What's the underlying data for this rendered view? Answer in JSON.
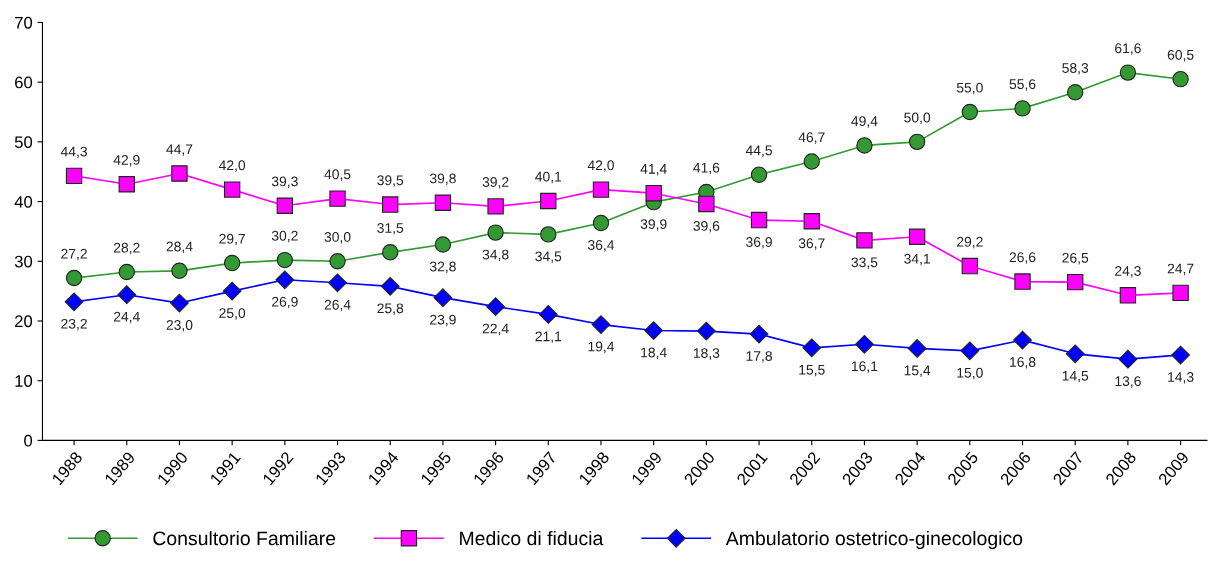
{
  "chart_data": {
    "type": "line",
    "categories": [
      "1988",
      "1989",
      "1990",
      "1991",
      "1992",
      "1993",
      "1994",
      "1995",
      "1996",
      "1997",
      "1998",
      "1999",
      "2000",
      "2001",
      "2002",
      "2003",
      "2004",
      "2005",
      "2006",
      "2007",
      "2008",
      "2009"
    ],
    "series": [
      {
        "name": "Consultorio Familiare",
        "color": "#339933",
        "marker": "circle",
        "values": [
          27.2,
          28.2,
          28.4,
          29.7,
          30.2,
          30.0,
          31.5,
          32.8,
          34.8,
          34.5,
          36.4,
          39.9,
          41.6,
          44.5,
          46.7,
          49.4,
          50.0,
          55.0,
          55.6,
          58.3,
          61.6,
          60.5
        ],
        "value_labels": [
          "27,2",
          "28,2",
          "28,4",
          "29,7",
          "30,2",
          "30,0",
          "31,5",
          "32,8",
          "34,8",
          "34,5",
          "36,4",
          "39,9",
          "41,6",
          "44,5",
          "46,7",
          "49,4",
          "50,0",
          "55,0",
          "55,6",
          "58,3",
          "61,6",
          "60,5"
        ]
      },
      {
        "name": "Medico di fiducia",
        "color": "#ff00ff",
        "marker": "square",
        "values": [
          44.3,
          42.9,
          44.7,
          42.0,
          39.3,
          40.5,
          39.5,
          39.8,
          39.2,
          40.1,
          42.0,
          41.4,
          39.6,
          36.9,
          36.7,
          33.5,
          34.1,
          29.2,
          26.6,
          26.5,
          24.3,
          24.7
        ],
        "value_labels": [
          "44,3",
          "42,9",
          "44,7",
          "42,0",
          "39,3",
          "40,5",
          "39,5",
          "39,8",
          "39,2",
          "40,1",
          "42,0",
          "41,4",
          "39,6",
          "36,9",
          "36,7",
          "33,5",
          "34,1",
          "29,2",
          "26,6",
          "26,5",
          "24,3",
          "24,7"
        ]
      },
      {
        "name": "Ambulatorio ostetrico-ginecologico",
        "color": "#0000ff",
        "marker": "diamond",
        "values": [
          23.2,
          24.4,
          23.0,
          25.0,
          26.9,
          26.4,
          25.8,
          23.9,
          22.4,
          21.1,
          19.4,
          18.4,
          18.3,
          17.8,
          15.5,
          16.1,
          15.4,
          15.0,
          16.8,
          14.5,
          13.6,
          14.3
        ],
        "value_labels": [
          "23,2",
          "24,4",
          "23,0",
          "25,0",
          "26,9",
          "26,4",
          "25,8",
          "23,9",
          "22,4",
          "21,1",
          "19,4",
          "18,4",
          "18,3",
          "17,8",
          "15,5",
          "16,1",
          "15,4",
          "15,0",
          "16,8",
          "14,5",
          "13,6",
          "14,3"
        ]
      }
    ],
    "ylim": [
      0,
      70
    ],
    "yticks": [
      0,
      10,
      20,
      30,
      40,
      50,
      60,
      70
    ],
    "grid": false,
    "legend": "bottom",
    "line_style": "solid"
  }
}
